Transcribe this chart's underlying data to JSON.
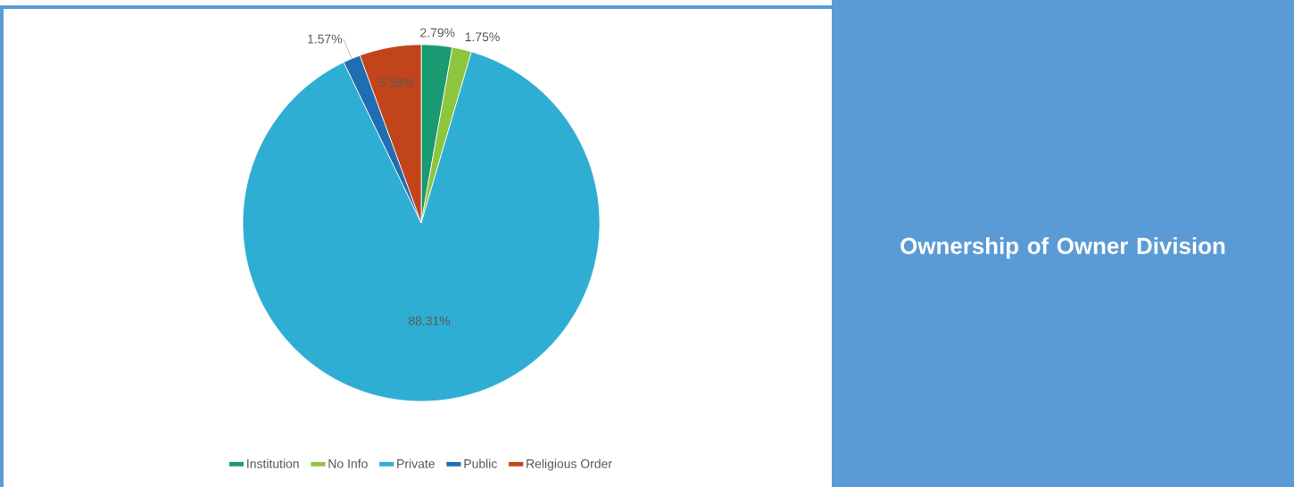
{
  "chart_data": {
    "type": "pie",
    "title": "Ownership of Owner Division",
    "categories": [
      "Institution",
      "No Info",
      "Private",
      "Public",
      "Religious Order"
    ],
    "values": [
      2.79,
      1.75,
      88.31,
      1.57,
      5.58
    ],
    "value_labels": [
      "2.79%",
      "1.75%",
      "88.31%",
      "1.57%",
      "5.58%"
    ],
    "colors": [
      "#1a9a72",
      "#8cc63e",
      "#2eaed2",
      "#1f6db3",
      "#c1441a"
    ],
    "legend": "bottom"
  }
}
